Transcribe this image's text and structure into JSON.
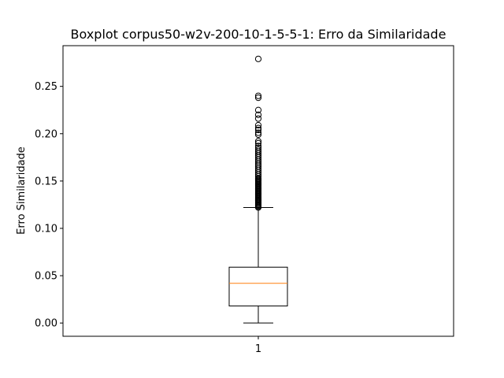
{
  "chart_data": {
    "type": "boxplot",
    "title": "Boxplot corpus50-w2v-200-10-1-5-5-1: Erro da Similaridade",
    "xlabel": "",
    "ylabel": "Erro Similaridade",
    "categories": [
      "1"
    ],
    "ylim": [
      -0.014,
      0.293
    ],
    "yticks": [
      0.0,
      0.05,
      0.1,
      0.15,
      0.2,
      0.25
    ],
    "ytick_labels": [
      "0.00",
      "0.05",
      "0.10",
      "0.15",
      "0.20",
      "0.25"
    ],
    "grid": false,
    "box": {
      "whisker_low": 0.0,
      "q1": 0.018,
      "median": 0.042,
      "q3": 0.059,
      "whisker_high": 0.122
    },
    "outliers": [
      0.122,
      0.123,
      0.124,
      0.125,
      0.126,
      0.127,
      0.128,
      0.129,
      0.13,
      0.131,
      0.132,
      0.133,
      0.134,
      0.135,
      0.136,
      0.137,
      0.138,
      0.139,
      0.14,
      0.141,
      0.142,
      0.143,
      0.144,
      0.145,
      0.146,
      0.147,
      0.148,
      0.149,
      0.15,
      0.151,
      0.152,
      0.153,
      0.155,
      0.157,
      0.159,
      0.161,
      0.163,
      0.165,
      0.167,
      0.169,
      0.171,
      0.173,
      0.175,
      0.177,
      0.179,
      0.181,
      0.183,
      0.185,
      0.187,
      0.19,
      0.192,
      0.199,
      0.201,
      0.204,
      0.206,
      0.209,
      0.216,
      0.22,
      0.225,
      0.238,
      0.24,
      0.279
    ],
    "colors": {
      "box": "#000000",
      "median": "#ff7f0e",
      "outlier": "#000000"
    }
  }
}
